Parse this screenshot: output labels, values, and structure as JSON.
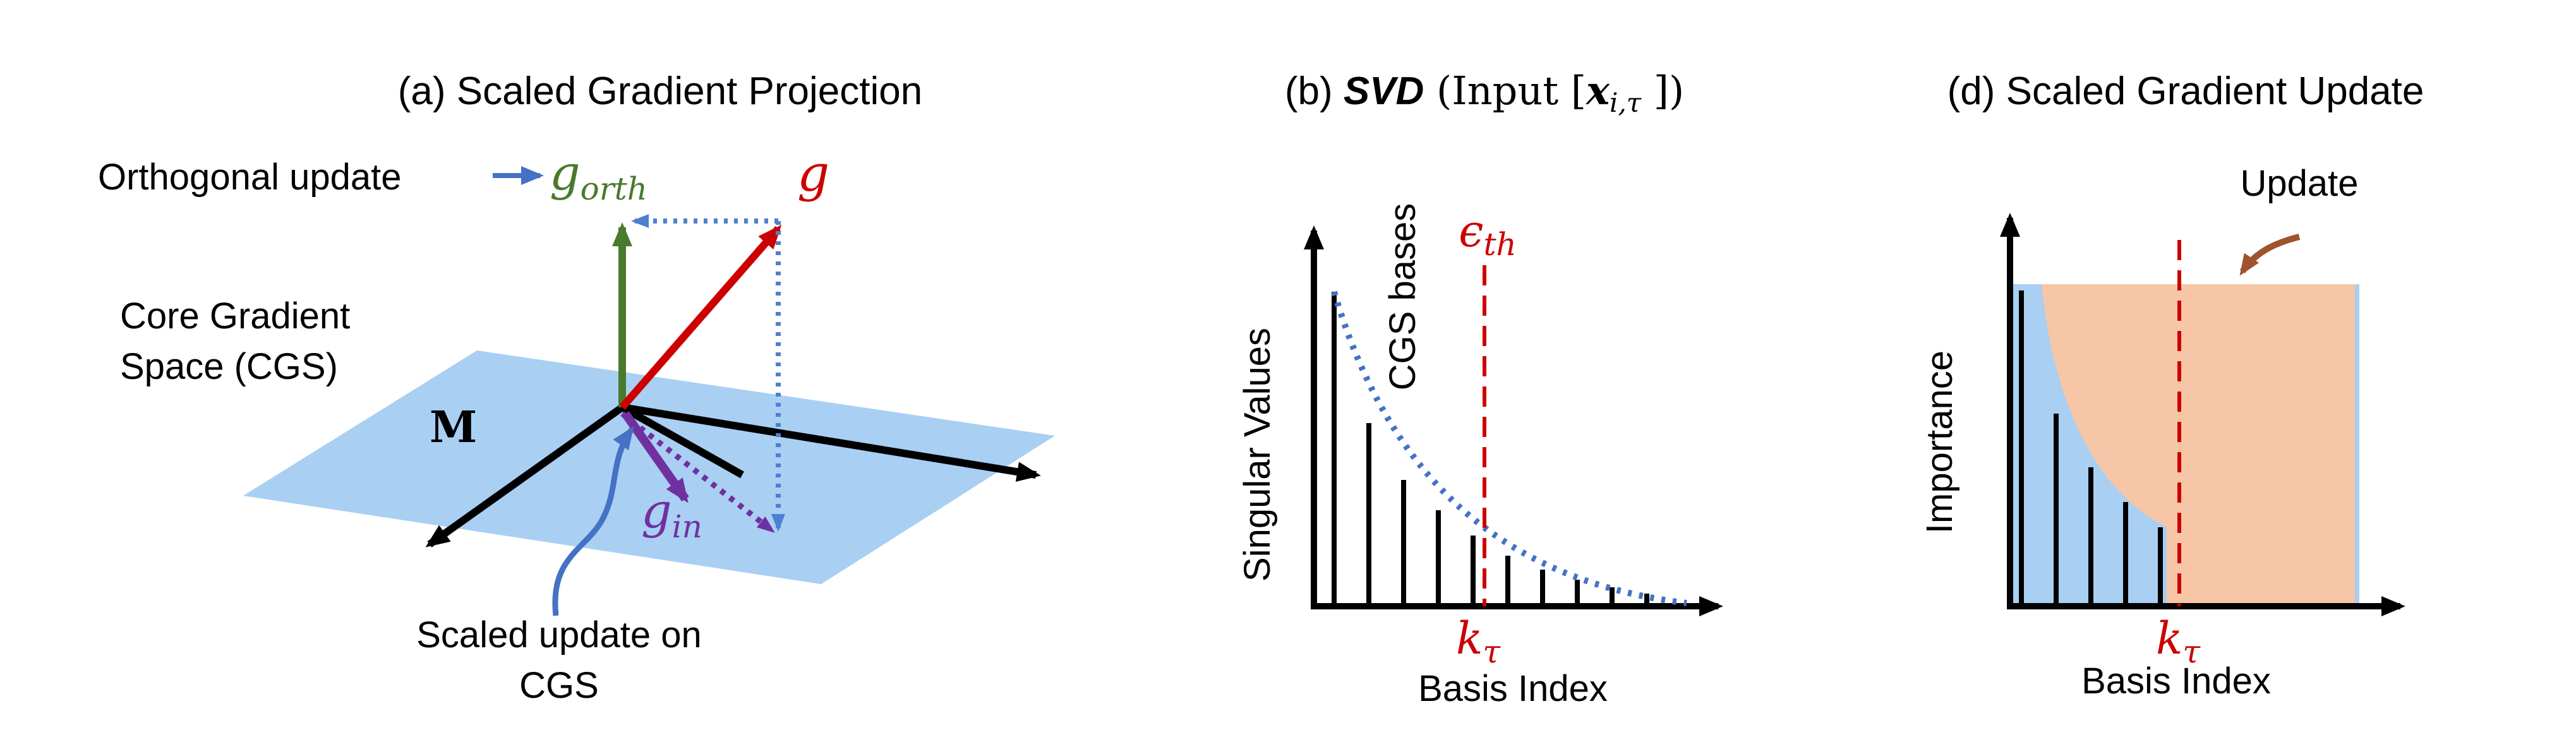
{
  "colors": {
    "plane": "#a9cff3",
    "black": "#000000",
    "green": "#4a7a2c",
    "red": "#cc0000",
    "purple": "#7030a0",
    "blue": "#4472c4",
    "dotted_blue": "#4f7fd0",
    "orange_fill": "#f6c6a6",
    "brown": "#a0522d"
  },
  "panel_a": {
    "title": "(a) Scaled Gradient Projection",
    "orthogonal_update": "Orthogonal update",
    "g_orth": "g",
    "g_orth_sub": "orth",
    "g": "g",
    "core_gradient_line1": "Core Gradient",
    "core_gradient_line2": "Space (CGS)",
    "m": "M",
    "g_in": "g",
    "g_in_sub": "in",
    "scaled_update_line1": "Scaled update on",
    "scaled_update_line2": "CGS"
  },
  "panel_b": {
    "title_prefix": "(b) ",
    "title_svd": "SVD",
    "title_rest_open": " (Input [",
    "title_x": "x",
    "title_x_sub": "i,τ",
    "title_close": " ])",
    "ylabel": "Singular Values",
    "cgs_bases": "CGS bases",
    "epsilon": "ϵ",
    "epsilon_sub": "th",
    "k": "k",
    "k_sub": "τ",
    "xlabel": "Basis Index"
  },
  "panel_d": {
    "title": "(d) Scaled Gradient Update",
    "update": "Update",
    "ylabel": "Importance",
    "k": "k",
    "k_sub": "τ",
    "xlabel": "Basis Index"
  }
}
